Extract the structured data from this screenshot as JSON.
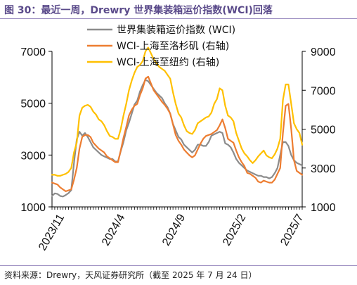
{
  "header": {
    "title": "图 30：最近一周，Drewry 世界集装箱运价指数(WCI)回落"
  },
  "footer": {
    "source": "资料来源：Drewry，天风证券研究所（截至 2025 年 7 月 24 日）"
  },
  "colors": {
    "wci": "#8c8c8c",
    "la": "#ed7d31",
    "ny": "#ffc000"
  },
  "chart_data": {
    "type": "line",
    "x": [
      "2023-10-26",
      "2023-11-02",
      "2023-11-09",
      "2023-11-16",
      "2023-11-23",
      "2023-11-30",
      "2023-12-07",
      "2023-12-14",
      "2023-12-21",
      "2023-12-28",
      "2024-01-04",
      "2024-01-11",
      "2024-01-18",
      "2024-01-25",
      "2024-02-01",
      "2024-02-08",
      "2024-02-15",
      "2024-02-22",
      "2024-02-29",
      "2024-03-07",
      "2024-03-14",
      "2024-03-21",
      "2024-03-28",
      "2024-04-04",
      "2024-04-11",
      "2024-04-18",
      "2024-04-25",
      "2024-05-02",
      "2024-05-09",
      "2024-05-16",
      "2024-05-23",
      "2024-05-30",
      "2024-06-06",
      "2024-06-13",
      "2024-06-20",
      "2024-06-27",
      "2024-07-04",
      "2024-07-11",
      "2024-07-18",
      "2024-07-25",
      "2024-08-01",
      "2024-08-08",
      "2024-08-15",
      "2024-08-22",
      "2024-08-29",
      "2024-09-05",
      "2024-09-12",
      "2024-09-19",
      "2024-09-26",
      "2024-10-03",
      "2024-10-10",
      "2024-10-17",
      "2024-10-24",
      "2024-10-31",
      "2024-11-07",
      "2024-11-14",
      "2024-11-21",
      "2024-11-28",
      "2024-12-05",
      "2024-12-12",
      "2024-12-19",
      "2024-12-26",
      "2025-01-02",
      "2025-01-09",
      "2025-01-16",
      "2025-01-23",
      "2025-01-30",
      "2025-02-06",
      "2025-02-13",
      "2025-02-20",
      "2025-02-27",
      "2025-03-06",
      "2025-03-13",
      "2025-03-20",
      "2025-03-27",
      "2025-04-03",
      "2025-04-10",
      "2025-04-17",
      "2025-04-24",
      "2025-05-01",
      "2025-05-08",
      "2025-05-15",
      "2025-05-22",
      "2025-05-29",
      "2025-06-05",
      "2025-06-12",
      "2025-06-19",
      "2025-06-26",
      "2025-07-03",
      "2025-07-10",
      "2025-07-17",
      "2025-07-24"
    ],
    "series": [
      {
        "name": "世界集装箱运价指数 (WCI)",
        "axis": "left",
        "values": [
          1420,
          1520,
          1500,
          1420,
          1400,
          1460,
          1530,
          1650,
          2700,
          3600,
          3900,
          3750,
          3850,
          3700,
          3500,
          3300,
          3200,
          3100,
          3000,
          2950,
          2900,
          2850,
          2850,
          2750,
          2750,
          3150,
          3500,
          3950,
          4250,
          4600,
          4950,
          5100,
          5450,
          5700,
          5900,
          5850,
          5700,
          5550,
          5400,
          5300,
          5200,
          5000,
          4850,
          4600,
          4200,
          3950,
          3700,
          3600,
          3400,
          3300,
          3200,
          3100,
          3200,
          3400,
          3400,
          3350,
          3350,
          3500,
          3750,
          3800,
          3850,
          3900,
          3850,
          3450,
          3400,
          3300,
          3100,
          2850,
          2700,
          2600,
          2500,
          2400,
          2350,
          2300,
          2250,
          2200,
          2200,
          2150,
          2150,
          2100,
          2150,
          2300,
          2500,
          3000,
          3500,
          3500,
          3350,
          3000,
          2800,
          2700,
          2650,
          2600
        ]
      },
      {
        "name": "WCI-上海至洛杉矶 (右轴)",
        "axis": "right",
        "values": [
          2250,
          2200,
          2150,
          2000,
          1900,
          1800,
          1850,
          1900,
          2400,
          3000,
          4000,
          4600,
          4700,
          4700,
          4600,
          4300,
          4150,
          4000,
          3900,
          3800,
          3600,
          3500,
          3400,
          3300,
          3300,
          3900,
          4550,
          5100,
          5700,
          6000,
          6200,
          6300,
          6750,
          7100,
          7600,
          7700,
          7350,
          7000,
          6800,
          6600,
          6400,
          6250,
          6050,
          5800,
          5250,
          4700,
          4400,
          4200,
          3950,
          3800,
          3650,
          3550,
          3650,
          3950,
          4250,
          4500,
          4650,
          4700,
          4750,
          4850,
          4950,
          5200,
          5500,
          5050,
          4500,
          4400,
          4300,
          3900,
          3550,
          3300,
          3100,
          2750,
          2700,
          2600,
          2500,
          2300,
          2250,
          2350,
          2300,
          2250,
          2250,
          2400,
          2700,
          3000,
          4800,
          6200,
          6300,
          5000,
          3400,
          2850,
          2750,
          2650
        ]
      },
      {
        "name": "WCI-上海至纽约 (右轴)",
        "axis": "right",
        "values": [
          2650,
          2650,
          2600,
          2600,
          2650,
          2700,
          2800,
          3000,
          3800,
          4300,
          5700,
          6100,
          6200,
          6250,
          6150,
          5900,
          5750,
          5500,
          5400,
          5200,
          4900,
          4650,
          4600,
          4500,
          4500,
          5000,
          5700,
          6300,
          7000,
          7500,
          7900,
          8200,
          8300,
          8500,
          9000,
          9200,
          8900,
          8600,
          8400,
          8200,
          8100,
          8000,
          7800,
          7600,
          6900,
          6300,
          5800,
          5600,
          5200,
          4900,
          4800,
          4750,
          4950,
          5300,
          5400,
          5500,
          5600,
          5650,
          5850,
          6300,
          6550,
          7100,
          7000,
          6200,
          5700,
          5600,
          5400,
          4800,
          4400,
          4000,
          3750,
          3600,
          3400,
          3250,
          3400,
          3600,
          3750,
          3900,
          3650,
          3550,
          3500,
          3700,
          4000,
          4500,
          6500,
          7300,
          7300,
          6300,
          5300,
          5000,
          4800,
          4200
        ]
      }
    ],
    "x_ticks": [
      "2023/11",
      "2024/4",
      "2024/9",
      "2025/2",
      "2025/7"
    ],
    "y_left": {
      "ticks": [
        1000,
        3000,
        5000,
        7000
      ],
      "lim": [
        1000,
        7000
      ]
    },
    "y_right": {
      "ticks": [
        1000,
        3000,
        5000,
        7000,
        9000
      ],
      "lim": [
        1000,
        9000
      ]
    },
    "legend_position": "top-center",
    "grid": false
  }
}
